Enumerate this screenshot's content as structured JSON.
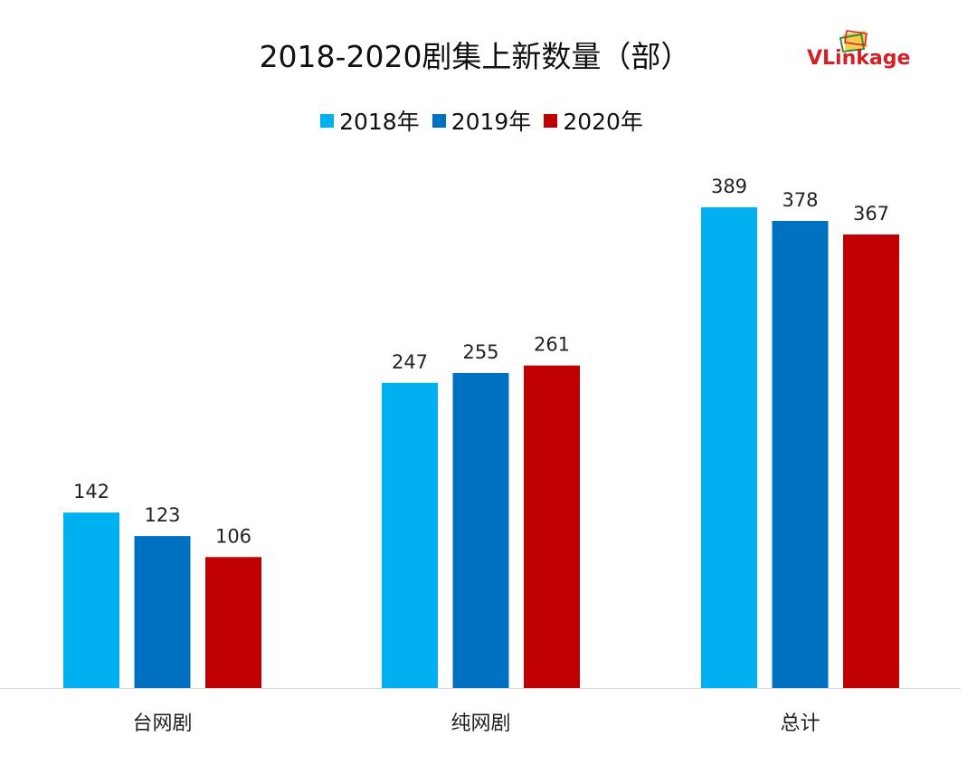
{
  "chart_data": {
    "type": "bar",
    "title": "2018-2020剧集上新数量（部）",
    "categories": [
      "台网剧",
      "纯网剧",
      "总计"
    ],
    "series": [
      {
        "name": "2018年",
        "color": "#00b0f0",
        "values": [
          142,
          247,
          389
        ]
      },
      {
        "name": "2019年",
        "color": "#0070c0",
        "values": [
          123,
          255,
          378
        ]
      },
      {
        "name": "2020年",
        "color": "#c00000",
        "values": [
          106,
          261,
          367
        ]
      }
    ],
    "xlabel": "",
    "ylabel": "",
    "ylim": [
      0,
      389
    ],
    "grid": false,
    "legend_position": "top"
  },
  "logo": {
    "text_main": "VLink",
    "text_tail": "age",
    "color": "#d31f26"
  }
}
